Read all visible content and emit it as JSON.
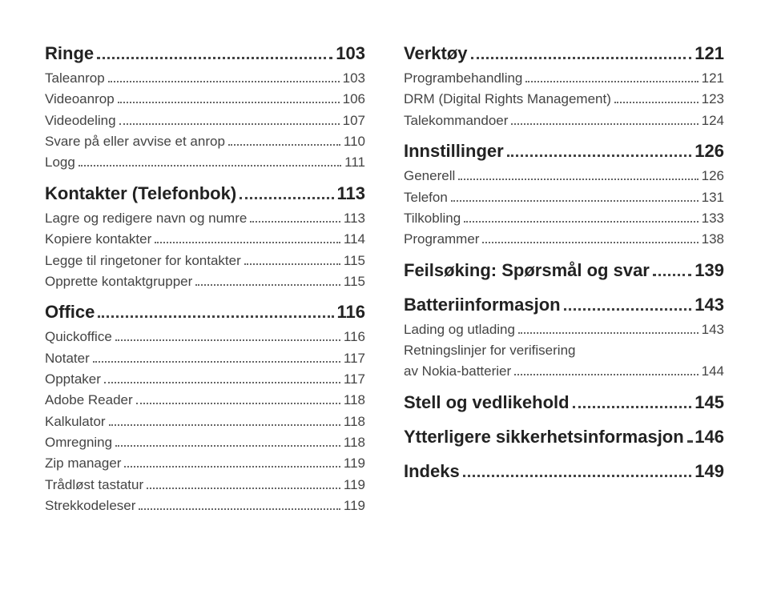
{
  "left": [
    {
      "level": "h1",
      "label": "Ringe",
      "page": "103"
    },
    {
      "level": "sub",
      "label": "Taleanrop",
      "page": "103"
    },
    {
      "level": "sub",
      "label": "Videoanrop",
      "page": "106"
    },
    {
      "level": "sub",
      "label": "Videodeling",
      "page": "107"
    },
    {
      "level": "sub",
      "label": "Svare på eller avvise et anrop",
      "page": "110"
    },
    {
      "level": "sub",
      "label": "Logg",
      "page": "111"
    },
    {
      "level": "h1",
      "label": "Kontakter (Telefonbok)",
      "page": "113"
    },
    {
      "level": "sub",
      "label": "Lagre og redigere navn og numre",
      "page": "113"
    },
    {
      "level": "sub",
      "label": "Kopiere kontakter",
      "page": "114"
    },
    {
      "level": "sub",
      "label": "Legge til ringetoner for kontakter",
      "page": "115"
    },
    {
      "level": "sub",
      "label": "Opprette kontaktgrupper",
      "page": "115"
    },
    {
      "level": "h1",
      "label": "Office",
      "page": "116"
    },
    {
      "level": "sub",
      "label": "Quickoffice",
      "page": "116"
    },
    {
      "level": "sub",
      "label": "Notater",
      "page": "117"
    },
    {
      "level": "sub",
      "label": "Opptaker",
      "page": "117"
    },
    {
      "level": "sub",
      "label": "Adobe Reader",
      "page": "118"
    },
    {
      "level": "sub",
      "label": "Kalkulator",
      "page": "118"
    },
    {
      "level": "sub",
      "label": "Omregning",
      "page": "118"
    },
    {
      "level": "sub",
      "label": "Zip manager",
      "page": "119"
    },
    {
      "level": "sub",
      "label": "Trådløst tastatur",
      "page": "119"
    },
    {
      "level": "sub",
      "label": "Strekkodeleser",
      "page": "119"
    }
  ],
  "right": [
    {
      "level": "h1",
      "label": "Verktøy",
      "page": "121"
    },
    {
      "level": "sub",
      "label": "Programbehandling",
      "page": "121"
    },
    {
      "level": "sub",
      "label": "DRM (Digital Rights Management)",
      "page": "123"
    },
    {
      "level": "sub",
      "label": "Talekommandoer",
      "page": "124"
    },
    {
      "level": "h1",
      "label": "Innstillinger",
      "page": "126"
    },
    {
      "level": "sub",
      "label": "Generell",
      "page": "126"
    },
    {
      "level": "sub",
      "label": "Telefon",
      "page": "131"
    },
    {
      "level": "sub",
      "label": "Tilkobling",
      "page": "133"
    },
    {
      "level": "sub",
      "label": "Programmer",
      "page": "138"
    },
    {
      "level": "h1",
      "label": "Feilsøking: Spørsmål og svar",
      "page": "139"
    },
    {
      "level": "h1",
      "label": "Batteriinformasjon",
      "page": "143"
    },
    {
      "level": "sub",
      "label": "Lading og utlading",
      "page": "143"
    },
    {
      "level": "wrap",
      "line1": "Retningslinjer for verifisering",
      "label": "av Nokia-batterier",
      "page": "144"
    },
    {
      "level": "h1",
      "label": "Stell og vedlikehold",
      "page": "145"
    },
    {
      "level": "h1",
      "label": "Ytterligere sikkerhetsinformasjon",
      "page": "146"
    },
    {
      "level": "h1",
      "label": "Indeks",
      "page": "149"
    }
  ]
}
